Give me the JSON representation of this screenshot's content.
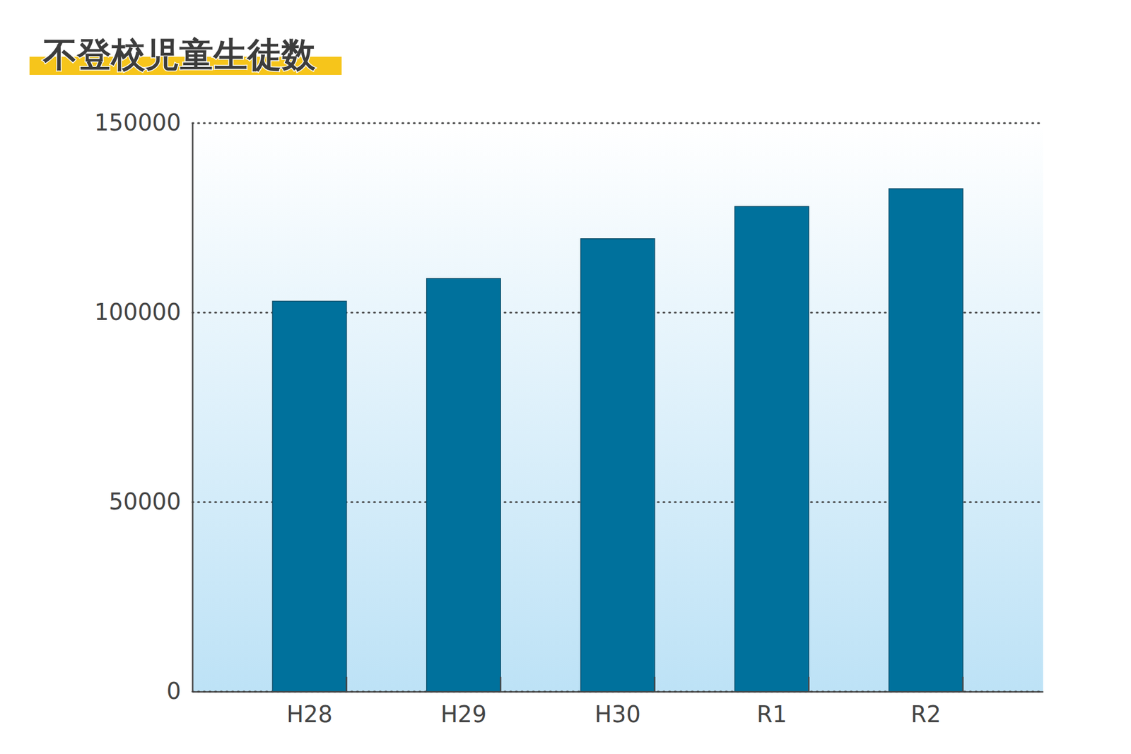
{
  "chart_data": {
    "type": "bar",
    "title": "不登校児童生徒数",
    "categories": [
      "H28",
      "H29",
      "H30",
      "R1",
      "R2"
    ],
    "values": [
      103000,
      109000,
      119500,
      128000,
      132700
    ],
    "color": "#00719c",
    "ylim": [
      0,
      150000
    ],
    "yticks": [
      0,
      50000,
      100000,
      150000
    ],
    "grid": true
  }
}
